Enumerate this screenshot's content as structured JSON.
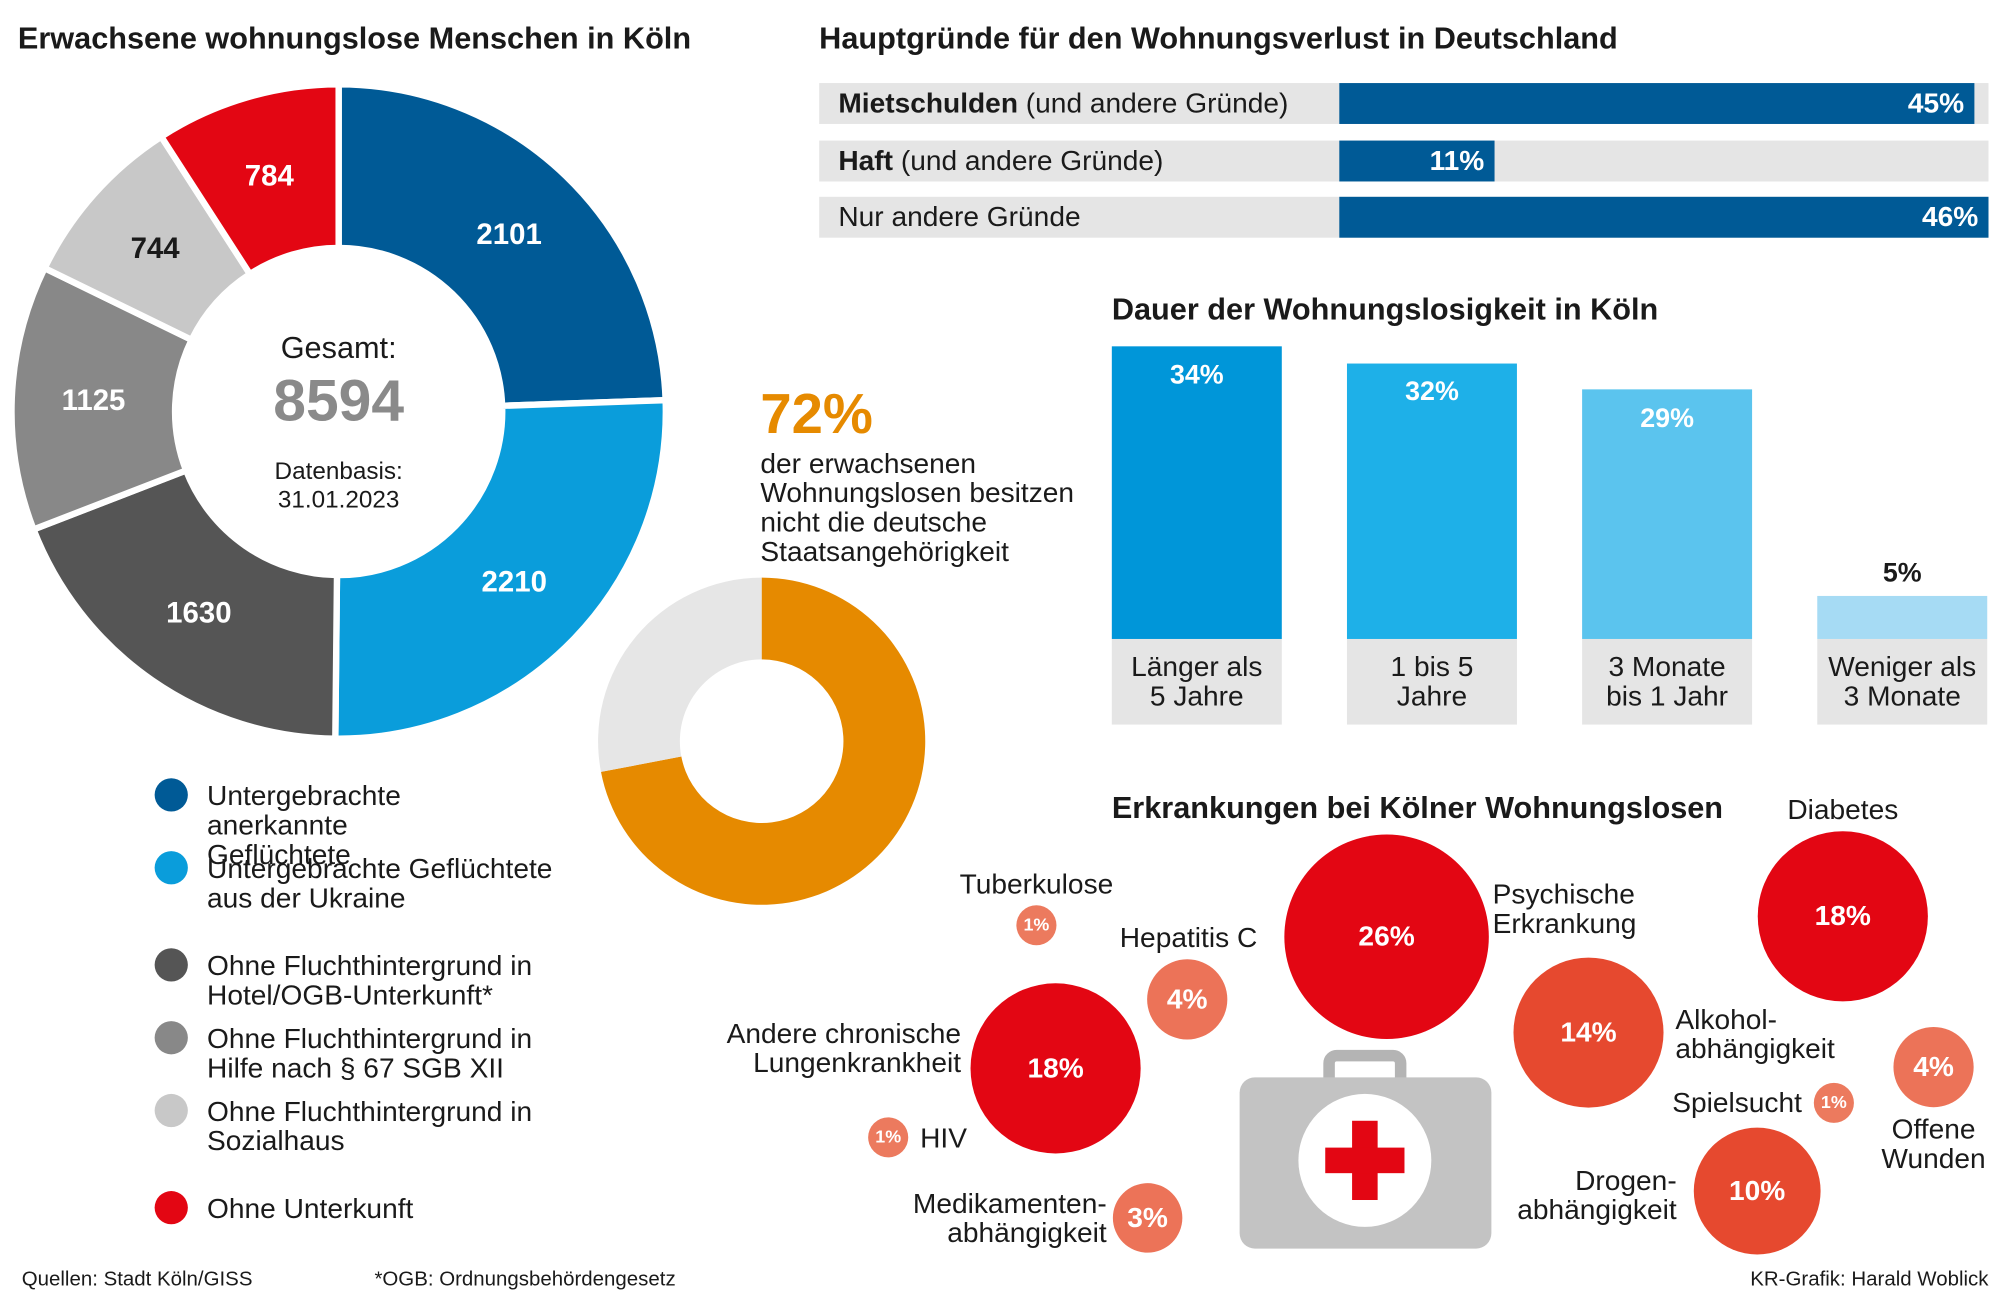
{
  "chart_data": [
    {
      "type": "donut",
      "title": "Erwachsene wohnungslose Menschen in Köln",
      "categories": [
        "Untergebrachte anerkannte Geflüchtete",
        "Untergebrachte Geflüchtete aus der Ukraine",
        "Ohne Fluchthintergrund in Hotel/OGB-Unterkunft*",
        "Ohne Fluchthintergrund in Hilfe nach § 67 SGB XII",
        "Ohne Fluchthintergrund in Sozialhaus",
        "Ohne Unterkunft"
      ],
      "values": [
        2101,
        2210,
        1630,
        1125,
        744,
        784
      ],
      "colors": [
        "#005a96",
        "#0a9ddb",
        "#555555",
        "#888888",
        "#c8c8c8",
        "#e30613"
      ],
      "center_label": "Gesamt:",
      "total": "8594",
      "subtitle": "Datenbasis: 31.01.2023"
    },
    {
      "type": "hbar",
      "title": "Hauptgründe für den Wohnungsverlust in Deutschland",
      "categories": [
        "Mietschulden (und andere Gründe)",
        "Haft (und andere Gründe)",
        "Nur andere Gründe"
      ],
      "values": [
        45,
        11,
        46
      ],
      "value_labels": [
        "45%",
        "11%",
        "46%"
      ],
      "color": "#005a96"
    },
    {
      "type": "vbar",
      "title": "Dauer der Wohnungslosigkeit in Köln",
      "categories": [
        "Länger als 5 Jahre",
        "1 bis 5 Jahre",
        "3 Monate bis 1 Jahr",
        "Weniger als 3 Monate"
      ],
      "values": [
        34,
        32,
        29,
        5
      ],
      "value_labels": [
        "34%",
        "32%",
        "29%",
        "5%"
      ],
      "colors": [
        "#0096d9",
        "#1eb0e8",
        "#5bc4ee",
        "#a6dbf4"
      ]
    },
    {
      "type": "ring",
      "values": [
        72,
        28
      ],
      "value_labels": [
        "72%",
        null
      ],
      "subtitle": "der erwachsenen Wohnungslosen besitzen nicht die deutsche Staatsangehörigkeit",
      "colors": [
        "#e68a00",
        "#e6e6e6"
      ]
    },
    {
      "type": "bubble",
      "title": "Erkrankungen bei Kölner Wohnungslosen",
      "categories": [
        "Tuberkulose",
        "Hepatitis C",
        "Psychische Erkrankung",
        "Diabetes",
        "Andere chronische Lungenkrankheit",
        "HIV",
        "Medikamenten-abhängigkeit",
        "Alkohol-abhängigkeit",
        "Spielsucht",
        "Offene Wunden",
        "Drogen-abhängigkeit"
      ],
      "values": [
        1,
        4,
        26,
        18,
        18,
        1,
        3,
        14,
        1,
        4,
        10
      ],
      "value_labels": [
        "1%",
        "4%",
        "26%",
        "18%",
        "18%",
        "1%",
        "3%",
        "14%",
        "1%",
        "4%",
        "10%"
      ],
      "colors": [
        "#ec7a5e",
        "#ec7358",
        "#e30613",
        "#e30613",
        "#e30613",
        "#ec7a5e",
        "#ec7358",
        "#e6492f",
        "#ec7a5e",
        "#ec7358",
        "#e6492f"
      ]
    }
  ],
  "footer": {
    "source": "Quellen: Stadt Köln/GISS",
    "note": "*OGB: Ordnungsbehördengesetz",
    "credit": "KR-Grafik: Harald Woblick"
  }
}
